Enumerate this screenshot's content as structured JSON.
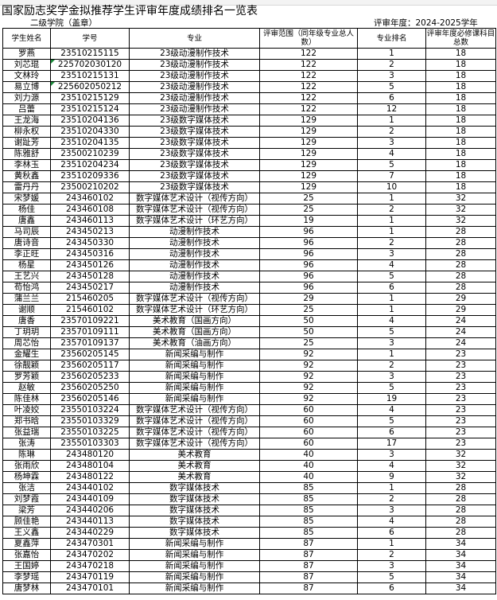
{
  "title": "国家励志奖学金拟推荐学生评审年度成绩排名一览表",
  "college_label": "二级学院（盖章）",
  "year_label": "评审年度：2024-2025学年",
  "columns": [
    "学生姓名",
    "学号",
    "专业",
    "评审范围（同年级专业总人数）",
    "专业排名",
    "评审年度必修课科目总数"
  ],
  "rows": [
    [
      "罗燕",
      "23510215115",
      "23级动漫制作技术",
      "122",
      "1",
      "18"
    ],
    [
      "刘芯琨",
      "225702030120",
      "23级动漫制作技术",
      "122",
      "2",
      "18"
    ],
    [
      "文林玲",
      "23510215131",
      "23级动漫制作技术",
      "122",
      "3",
      "18"
    ],
    [
      "易立博",
      "225602050212",
      "23级动漫制作技术",
      "122",
      "5",
      "18"
    ],
    [
      "刘力源",
      "23510215129",
      "23级动漫制作技术",
      "122",
      "6",
      "18"
    ],
    [
      "吕蕾",
      "23510215124",
      "23级动漫制作技术",
      "122",
      "12",
      "18"
    ],
    [
      "王龙海",
      "23510204136",
      "23级数字媒体技术",
      "129",
      "1",
      "18"
    ],
    [
      "柳永权",
      "23510204330",
      "23级数字媒体技术",
      "129",
      "2",
      "18"
    ],
    [
      "谢趾芳",
      "23510204135",
      "23级数字媒体技术",
      "129",
      "3",
      "18"
    ],
    [
      "陈雅舒",
      "23500210239",
      "23级数字媒体技术",
      "129",
      "4",
      "18"
    ],
    [
      "李林玉",
      "23510204234",
      "23级数字媒体技术",
      "129",
      "5",
      "18"
    ],
    [
      "黄秋鑫",
      "23510209336",
      "23级数字媒体技术",
      "129",
      "7",
      "18"
    ],
    [
      "雷丹丹",
      "23500210202",
      "23级数字媒体技术",
      "129",
      "10",
      "18"
    ],
    [
      "宋梦媛",
      "243460102",
      "数字媒体艺术设计（视传方向）",
      "25",
      "1",
      "32"
    ],
    [
      "杨佳",
      "243460108",
      "数字媒体艺术设计（视传方向）",
      "25",
      "2",
      "32"
    ],
    [
      "唐鑫",
      "243460113",
      "数字媒体艺术设计（环艺方向）",
      "19",
      "1",
      "32"
    ],
    [
      "马司辰",
      "243450213",
      "动漫制作技术",
      "96",
      "1",
      "28"
    ],
    [
      "唐诗音",
      "243450330",
      "动漫制作技术",
      "96",
      "2",
      "28"
    ],
    [
      "李正旺",
      "243450316",
      "动漫制作技术",
      "96",
      "3",
      "28"
    ],
    [
      "杨星",
      "243450126",
      "动漫制作技术",
      "96",
      "4",
      "28"
    ],
    [
      "王艺兴",
      "243450128",
      "动漫制作技术",
      "96",
      "5",
      "28"
    ],
    [
      "苟怡鸿",
      "243450217",
      "动漫制作技术",
      "96",
      "6",
      "28"
    ],
    [
      "蒲兰兰",
      "215460205",
      "数字媒体艺术设计（视传方向）",
      "29",
      "1",
      "29"
    ],
    [
      "谢顺",
      "215460102",
      "数字媒体艺术设计（环艺方向）",
      "25",
      "1",
      "29"
    ],
    [
      "唐香",
      "23570109221",
      "美术教育（国画方向）",
      "50",
      "4",
      "24"
    ],
    [
      "丁玥玥",
      "23570109111",
      "美术教育（国画方向）",
      "50",
      "5",
      "24"
    ],
    [
      "周芯怡",
      "23570109137",
      "美术教育（油画方向）",
      "25",
      "3",
      "24"
    ],
    [
      "金耀生",
      "23560205145",
      "新闻采编与制作",
      "92",
      "1",
      "23"
    ],
    [
      "徐靓颖",
      "23560205117",
      "新闻采编与制作",
      "92",
      "2",
      "23"
    ],
    [
      "罗芳颖",
      "23560205233",
      "新闻采编与制作",
      "92",
      "3",
      "23"
    ],
    [
      "赵敏",
      "23560205250",
      "新闻采编与制作",
      "92",
      "5",
      "23"
    ],
    [
      "陈佳林",
      "23560205146",
      "新闻采编与制作",
      "92",
      "19",
      "23"
    ],
    [
      "叶凌姣",
      "23550103224",
      "数字媒体艺术设计（视传方向）",
      "60",
      "4",
      "23"
    ],
    [
      "郑书晗",
      "23550103329",
      "数字媒体艺术设计（视传方向）",
      "60",
      "5",
      "23"
    ],
    [
      "张益瑞",
      "23550103225",
      "数字媒体艺术设计（视传方向）",
      "60",
      "6",
      "23"
    ],
    [
      "张涛",
      "23550103303",
      "数字媒体艺术设计（视传方向）",
      "60",
      "17",
      "23"
    ],
    [
      "陈琳",
      "243480120",
      "美术教育",
      "40",
      "3",
      "32"
    ],
    [
      "张雨欣",
      "243480104",
      "美术教育",
      "40",
      "4",
      "32"
    ],
    [
      "杨坤霖",
      "243480122",
      "美术教育",
      "40",
      "9",
      "32"
    ],
    [
      "张洁",
      "243440102",
      "数字媒体技术",
      "85",
      "1",
      "28"
    ],
    [
      "刘梦霞",
      "243440109",
      "数字媒体技术",
      "85",
      "2",
      "28"
    ],
    [
      "梁芳",
      "243440206",
      "数字媒体技术",
      "85",
      "3",
      "28"
    ],
    [
      "顾佳艳",
      "243440113",
      "数字媒体技术",
      "85",
      "4",
      "28"
    ],
    [
      "王义鑫",
      "243440229",
      "数字媒体技术",
      "85",
      "6",
      "28"
    ],
    [
      "夏鑫萍",
      "243470301",
      "新闻采编与制作",
      "87",
      "1",
      "34"
    ],
    [
      "张嘉怡",
      "243470202",
      "新闻采编与制作",
      "87",
      "2",
      "34"
    ],
    [
      "王国婷",
      "243470218",
      "新闻采编与制作",
      "87",
      "3",
      "34"
    ],
    [
      "李梦瑶",
      "243470119",
      "新闻采编与制作",
      "87",
      "5",
      "34"
    ],
    [
      "唐梦林",
      "243470101",
      "新闻采编与制作",
      "87",
      "6",
      "34"
    ]
  ],
  "text_number_marker_rows": [
    1,
    3
  ],
  "marker_color": "#1a8a3a"
}
